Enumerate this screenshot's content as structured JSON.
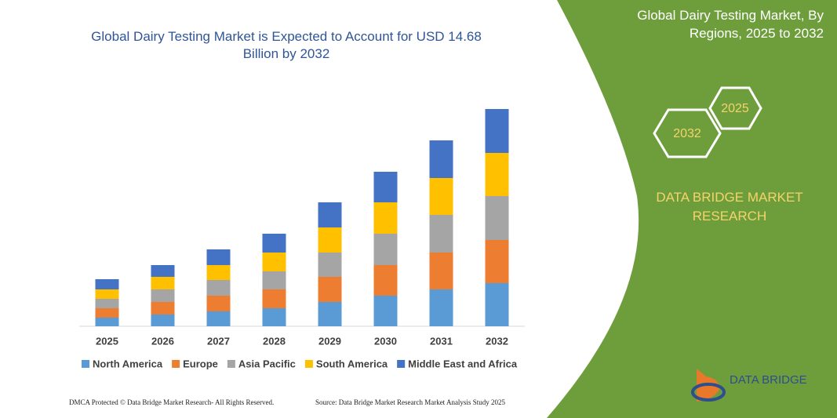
{
  "chart_data": {
    "type": "bar",
    "stacked": true,
    "title": "Global Dairy Testing Market is Expected to Account for USD 14.68 Billion by 2032",
    "categories": [
      "2025",
      "2026",
      "2027",
      "2028",
      "2029",
      "2030",
      "2031",
      "2032"
    ],
    "series": [
      {
        "name": "North America",
        "color": "#5b9bd5",
        "values": [
          11,
          15,
          19,
          23,
          31,
          39,
          47,
          55
        ]
      },
      {
        "name": "Europe",
        "color": "#ed7d31",
        "values": [
          12,
          16,
          20,
          24,
          32,
          39,
          47,
          55
        ]
      },
      {
        "name": "Asia Pacific",
        "color": "#a5a5a5",
        "values": [
          12,
          16,
          20,
          23,
          31,
          40,
          48,
          56
        ]
      },
      {
        "name": "South America",
        "color": "#ffc000",
        "values": [
          12,
          16,
          19,
          24,
          32,
          40,
          47,
          55
        ]
      },
      {
        "name": "Middle East and Africa",
        "color": "#4472c4",
        "values": [
          13,
          15,
          20,
          24,
          32,
          39,
          48,
          56
        ]
      }
    ],
    "legend": "bottom"
  },
  "panel": {
    "title": "Global Dairy Testing Market, By Regions, 2025 to 2032",
    "hex_small": "2025",
    "hex_large": "2032",
    "brand": "DATA BRIDGE MARKET RESEARCH"
  },
  "footer": {
    "left": "DMCA Protected © Data Bridge Market Research- All Rights Reserved.",
    "right": "Source: Data Bridge Market Research Market Analysis Study 2025",
    "logo": "DATA BRIDGE"
  }
}
